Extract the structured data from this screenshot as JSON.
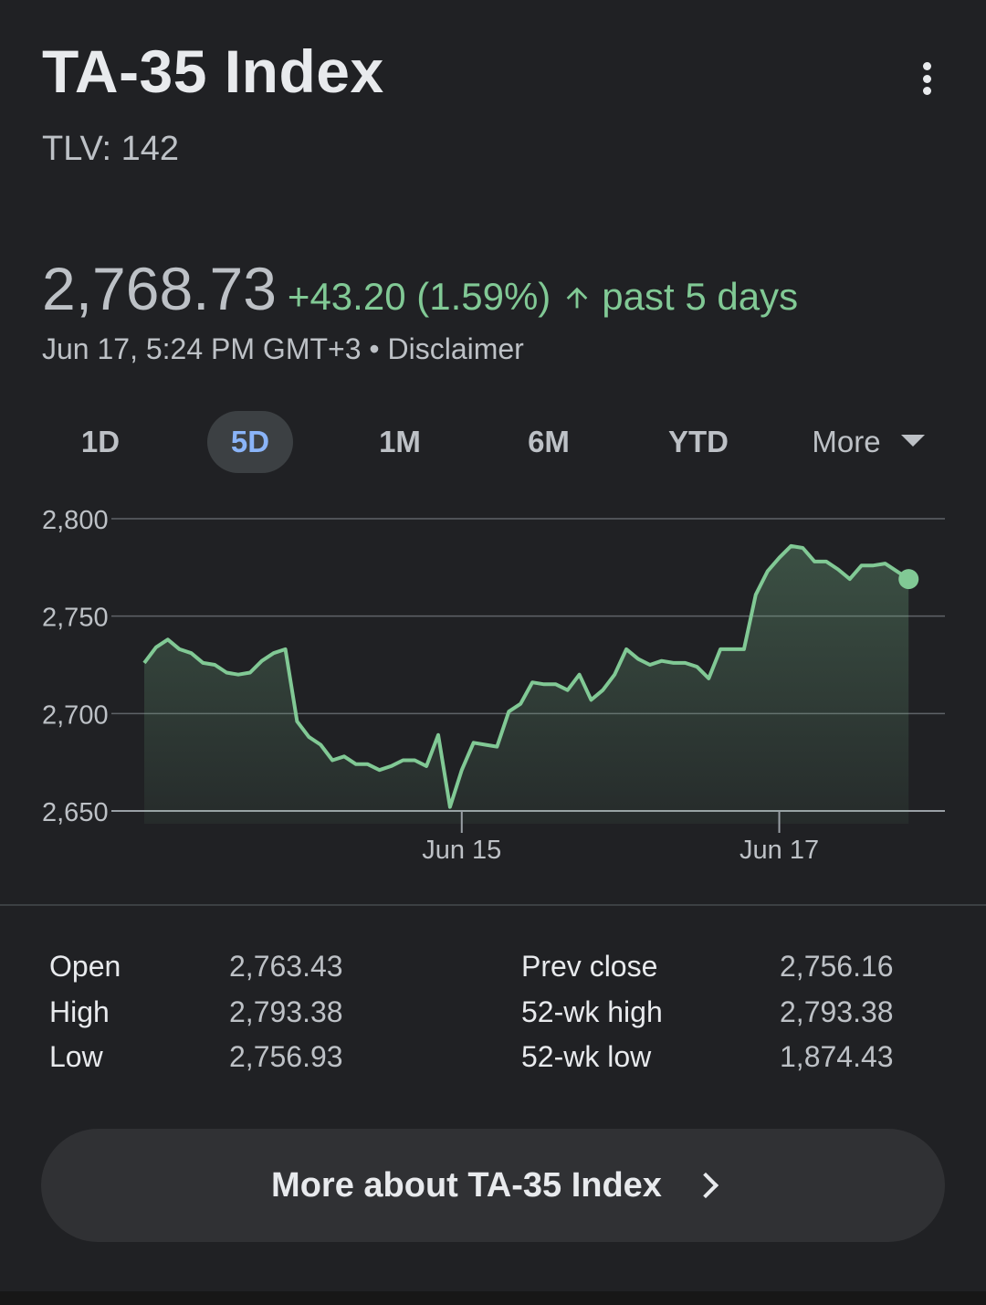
{
  "header": {
    "title": "TA-35 Index",
    "ticker": "TLV: 142",
    "menu_icon": "more-vert-icon"
  },
  "quote": {
    "price": "2,768.73",
    "change": "+43.20 (1.59%)",
    "direction_icon": "arrow-up-icon",
    "period": "past 5 days",
    "timestamp": "Jun 17, 5:24 PM GMT+3 • Disclaimer",
    "accent_color": "#81c995"
  },
  "tabs": [
    {
      "label": "1D",
      "active": false
    },
    {
      "label": "5D",
      "active": true
    },
    {
      "label": "1M",
      "active": false
    },
    {
      "label": "6M",
      "active": false
    },
    {
      "label": "YTD",
      "active": false
    },
    {
      "label": "More",
      "active": false
    }
  ],
  "chart_data": {
    "type": "area",
    "title": "",
    "xlabel": "",
    "ylabel": "",
    "ylim": [
      2650,
      2800
    ],
    "y_ticks": [
      "2,800",
      "2,750",
      "2,700",
      "2,650"
    ],
    "y_tick_values": [
      2800,
      2750,
      2700,
      2650
    ],
    "x_ticks": [
      {
        "label": "Jun 15",
        "x": 27
      },
      {
        "label": "Jun 17",
        "x": 54
      }
    ],
    "x_range": [
      0,
      67
    ],
    "grid": true,
    "color": "#81c995",
    "series": [
      {
        "values": [
          2726,
          2734,
          2738,
          2733,
          2731,
          2726,
          2725,
          2721,
          2720,
          2721,
          2727,
          2731,
          2733,
          2696,
          2688,
          2684,
          2676,
          2678,
          2674,
          2674,
          2671,
          2673,
          2676,
          2676,
          2673,
          2689,
          2652,
          2671,
          2685,
          2684,
          2683,
          2701,
          2705,
          2716,
          2715,
          2715,
          2712,
          2720,
          2707,
          2712,
          2720,
          2733,
          2728,
          2725,
          2727,
          2726,
          2726,
          2724,
          2718,
          2733,
          2733,
          2733,
          2761,
          2773,
          2780,
          2786,
          2785,
          2778,
          2778,
          2774,
          2769,
          2776,
          2776,
          2777,
          2773,
          2769
        ]
      }
    ]
  },
  "stats": {
    "left": [
      {
        "label": "Open",
        "value": "2,763.43"
      },
      {
        "label": "High",
        "value": "2,793.38"
      },
      {
        "label": "Low",
        "value": "2,756.93"
      }
    ],
    "right": [
      {
        "label": "Prev close",
        "value": "2,756.16"
      },
      {
        "label": "52-wk high",
        "value": "2,793.38"
      },
      {
        "label": "52-wk low",
        "value": "1,874.43"
      }
    ]
  },
  "cta": {
    "label": "More about TA-35 Index",
    "icon": "chevron-right-icon"
  }
}
